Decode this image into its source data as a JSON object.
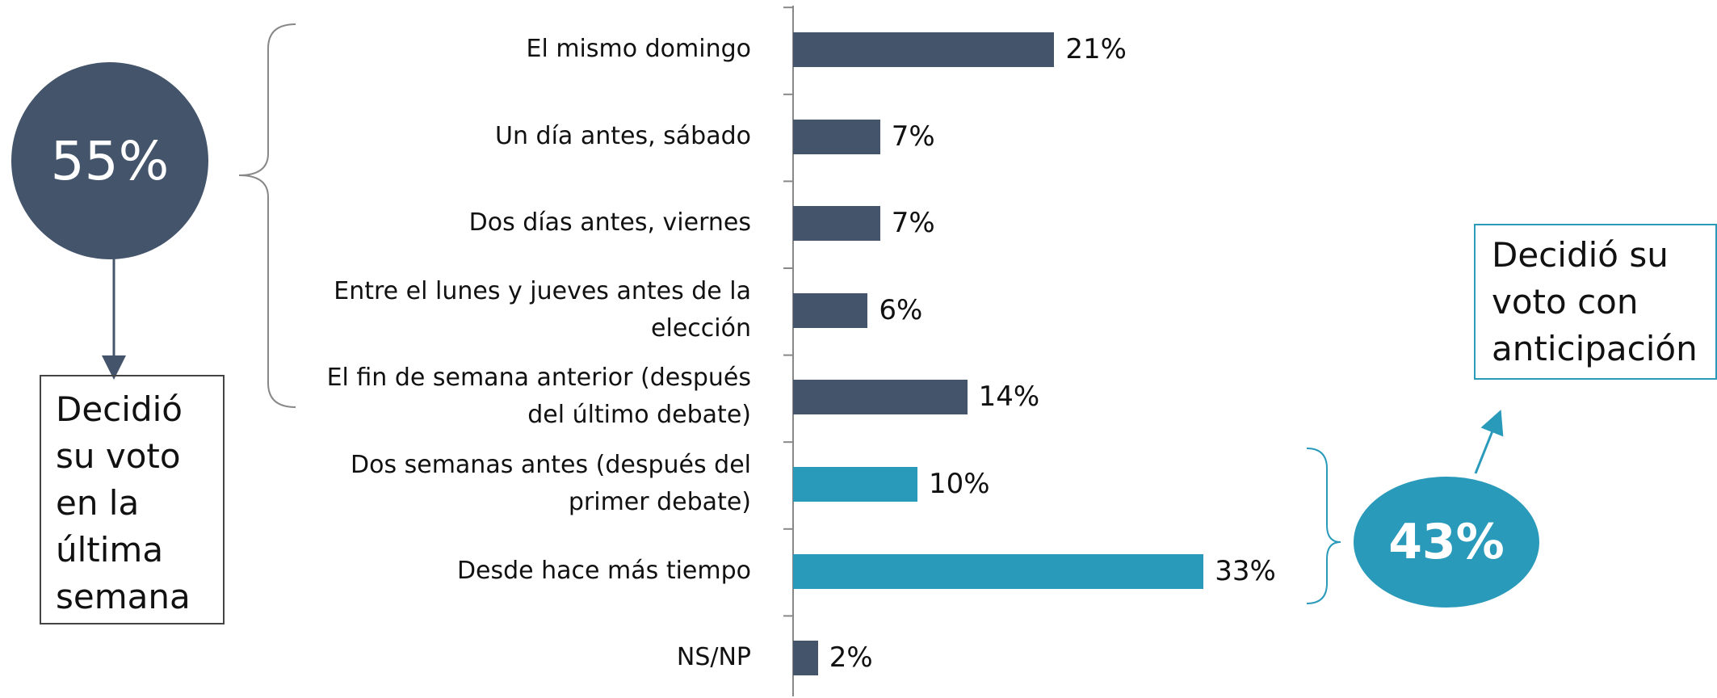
{
  "chart_data": {
    "type": "bar",
    "orientation": "horizontal",
    "categories": [
      "El mismo domingo",
      "Un día antes, sábado",
      "Dos días antes, viernes",
      "Entre el lunes y jueves antes de la elección",
      "El fin de semana anterior (después del último debate)",
      "Dos semanas antes (después del primer debate)",
      "Desde hace más tiempo",
      "NS/NP"
    ],
    "values": [
      21,
      7,
      7,
      6,
      14,
      10,
      33,
      2
    ],
    "value_labels": [
      "21%",
      "7%",
      "7%",
      "6%",
      "14%",
      "10%",
      "33%",
      "2%"
    ],
    "colors": [
      "#44546a",
      "#44546a",
      "#44546a",
      "#44546a",
      "#44546a",
      "#2a9aba",
      "#2a9aba",
      "#44546a"
    ],
    "annotations": {
      "last_week_total": "55%",
      "last_week_text": [
        "Decidió",
        "su voto",
        "en la",
        "última",
        "semana"
      ],
      "early_total": "43%",
      "early_text": [
        "Decidió su",
        "voto con",
        "anticipación"
      ]
    }
  }
}
